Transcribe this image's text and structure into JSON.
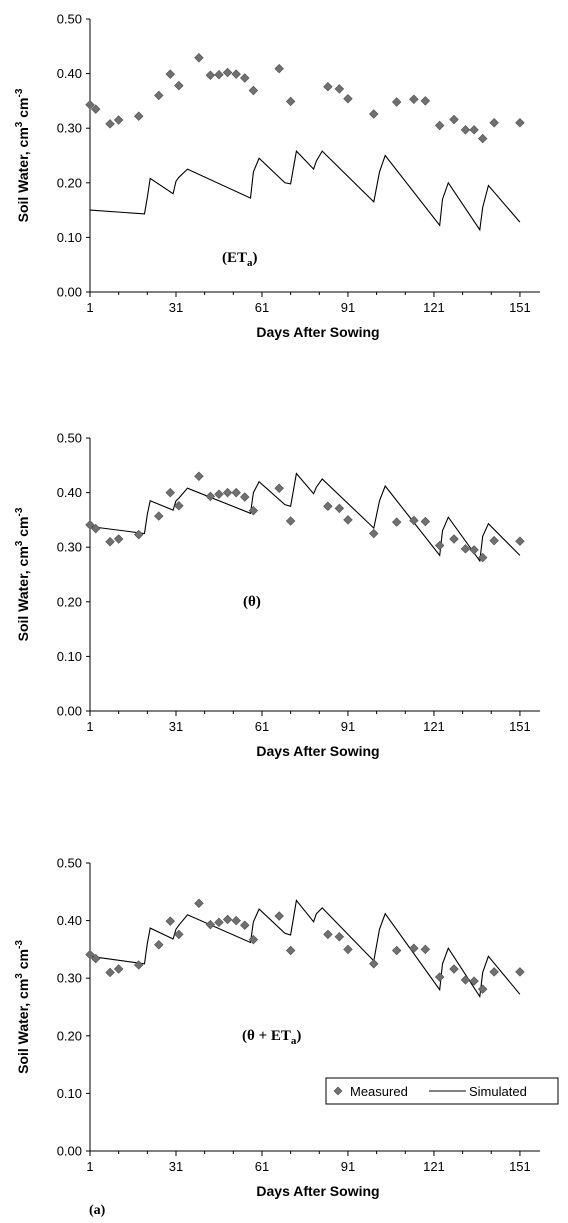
{
  "colors": {
    "marker": "#707070",
    "marker_edge": "#505050",
    "line": "#000000",
    "axis": "#000000"
  },
  "figure_label": "(a)",
  "legend": {
    "measured": "Measured",
    "simulated": "Simulated",
    "placement": "bottom-right of third panel"
  },
  "chart_data": [
    {
      "type": "line",
      "annotation": {
        "prefix": "(ET",
        "sub": "a",
        "suffix": ")"
      },
      "xlabel": "Days After Sowing",
      "ylabel": {
        "text": "Soil Water, cm",
        "sup1": "3",
        "mid": " cm",
        "sup2": "-3"
      },
      "xlim": [
        1,
        158
      ],
      "ylim": [
        0,
        0.5
      ],
      "xticks": [
        1,
        31,
        61,
        91,
        121,
        151
      ],
      "yticks": [
        "0.00",
        "0.10",
        "0.20",
        "0.30",
        "0.40",
        "0.50"
      ],
      "grid": false,
      "series": [
        {
          "name": "Measured",
          "kind": "scatter",
          "x": [
            1,
            3,
            8,
            11,
            18,
            25,
            29,
            32,
            39,
            43,
            46,
            49,
            52,
            55,
            58,
            67,
            71,
            84,
            88,
            91,
            100,
            108,
            114,
            118,
            123,
            128,
            132,
            135,
            138,
            142,
            151
          ],
          "y": [
            0.343,
            0.335,
            0.308,
            0.315,
            0.322,
            0.36,
            0.399,
            0.378,
            0.429,
            0.397,
            0.398,
            0.402,
            0.399,
            0.392,
            0.369,
            0.409,
            0.349,
            0.376,
            0.372,
            0.354,
            0.326,
            0.348,
            0.353,
            0.35,
            0.305,
            0.316,
            0.297,
            0.297,
            0.281,
            0.31,
            0.31
          ]
        },
        {
          "name": "Simulated",
          "kind": "line",
          "x": [
            1,
            20,
            21,
            22,
            30,
            31,
            32,
            35,
            57,
            58,
            60,
            69,
            71,
            73,
            79,
            80,
            82,
            100,
            102,
            104,
            123,
            124,
            126,
            137,
            138,
            140,
            151
          ],
          "y": [
            0.15,
            0.143,
            0.173,
            0.208,
            0.18,
            0.203,
            0.21,
            0.225,
            0.172,
            0.22,
            0.245,
            0.2,
            0.198,
            0.258,
            0.225,
            0.24,
            0.258,
            0.165,
            0.22,
            0.25,
            0.122,
            0.17,
            0.2,
            0.114,
            0.155,
            0.195,
            0.128
          ]
        }
      ]
    },
    {
      "type": "line",
      "annotation": {
        "prefix": "(θ)",
        "sub": "",
        "suffix": ""
      },
      "xlabel": "Days After Sowing",
      "ylabel": {
        "text": "Soil Water, cm",
        "sup1": "3",
        "mid": " cm",
        "sup2": "-3"
      },
      "xlim": [
        1,
        158
      ],
      "ylim": [
        0,
        0.5
      ],
      "xticks": [
        1,
        31,
        61,
        91,
        121,
        151
      ],
      "yticks": [
        "0.00",
        "0.10",
        "0.20",
        "0.30",
        "0.40",
        "0.50"
      ],
      "grid": false,
      "series": [
        {
          "name": "Measured",
          "kind": "scatter",
          "x": [
            1,
            3,
            8,
            11,
            18,
            25,
            29,
            32,
            39,
            43,
            46,
            49,
            52,
            55,
            58,
            67,
            71,
            84,
            88,
            91,
            100,
            108,
            114,
            118,
            123,
            128,
            132,
            135,
            138,
            142,
            151
          ],
          "y": [
            0.341,
            0.334,
            0.31,
            0.315,
            0.323,
            0.357,
            0.4,
            0.376,
            0.43,
            0.393,
            0.397,
            0.4,
            0.4,
            0.392,
            0.367,
            0.408,
            0.348,
            0.375,
            0.371,
            0.35,
            0.325,
            0.346,
            0.349,
            0.347,
            0.303,
            0.315,
            0.297,
            0.295,
            0.281,
            0.312,
            0.311
          ]
        },
        {
          "name": "Simulated",
          "kind": "line",
          "x": [
            1,
            20,
            21,
            22,
            30,
            31,
            32,
            35,
            57,
            58,
            60,
            69,
            71,
            73,
            79,
            80,
            82,
            100,
            102,
            104,
            123,
            124,
            126,
            137,
            138,
            140,
            151
          ],
          "y": [
            0.338,
            0.325,
            0.36,
            0.385,
            0.368,
            0.385,
            0.39,
            0.408,
            0.362,
            0.4,
            0.42,
            0.378,
            0.375,
            0.435,
            0.398,
            0.41,
            0.425,
            0.335,
            0.385,
            0.412,
            0.285,
            0.33,
            0.355,
            0.275,
            0.32,
            0.343,
            0.285
          ]
        }
      ]
    },
    {
      "type": "line",
      "annotation": {
        "prefix": "(θ + ET",
        "sub": "a",
        "suffix": ")"
      },
      "xlabel": "Days After Sowing",
      "ylabel": {
        "text": "Soil Water, cm",
        "sup1": "3",
        "mid": " cm",
        "sup2": "-3"
      },
      "xlim": [
        1,
        158
      ],
      "ylim": [
        0,
        0.5
      ],
      "xticks": [
        1,
        31,
        61,
        91,
        121,
        151
      ],
      "yticks": [
        "0.00",
        "0.10",
        "0.20",
        "0.30",
        "0.40",
        "0.50"
      ],
      "grid": false,
      "series": [
        {
          "name": "Measured",
          "kind": "scatter",
          "x": [
            1,
            3,
            8,
            11,
            18,
            25,
            29,
            32,
            39,
            43,
            46,
            49,
            52,
            55,
            58,
            67,
            71,
            84,
            88,
            91,
            100,
            108,
            114,
            118,
            123,
            128,
            132,
            135,
            138,
            142,
            151
          ],
          "y": [
            0.341,
            0.334,
            0.31,
            0.316,
            0.323,
            0.358,
            0.399,
            0.376,
            0.43,
            0.393,
            0.397,
            0.402,
            0.4,
            0.392,
            0.367,
            0.408,
            0.348,
            0.376,
            0.372,
            0.35,
            0.325,
            0.348,
            0.352,
            0.35,
            0.302,
            0.316,
            0.297,
            0.295,
            0.281,
            0.311,
            0.311
          ]
        },
        {
          "name": "Simulated",
          "kind": "line",
          "x": [
            1,
            20,
            21,
            22,
            30,
            31,
            32,
            35,
            57,
            58,
            60,
            69,
            71,
            73,
            79,
            80,
            82,
            100,
            102,
            104,
            123,
            124,
            126,
            137,
            138,
            140,
            151
          ],
          "y": [
            0.338,
            0.325,
            0.36,
            0.387,
            0.368,
            0.385,
            0.392,
            0.41,
            0.362,
            0.398,
            0.42,
            0.378,
            0.375,
            0.435,
            0.398,
            0.412,
            0.422,
            0.33,
            0.385,
            0.412,
            0.28,
            0.325,
            0.352,
            0.268,
            0.31,
            0.338,
            0.272
          ]
        }
      ]
    }
  ]
}
